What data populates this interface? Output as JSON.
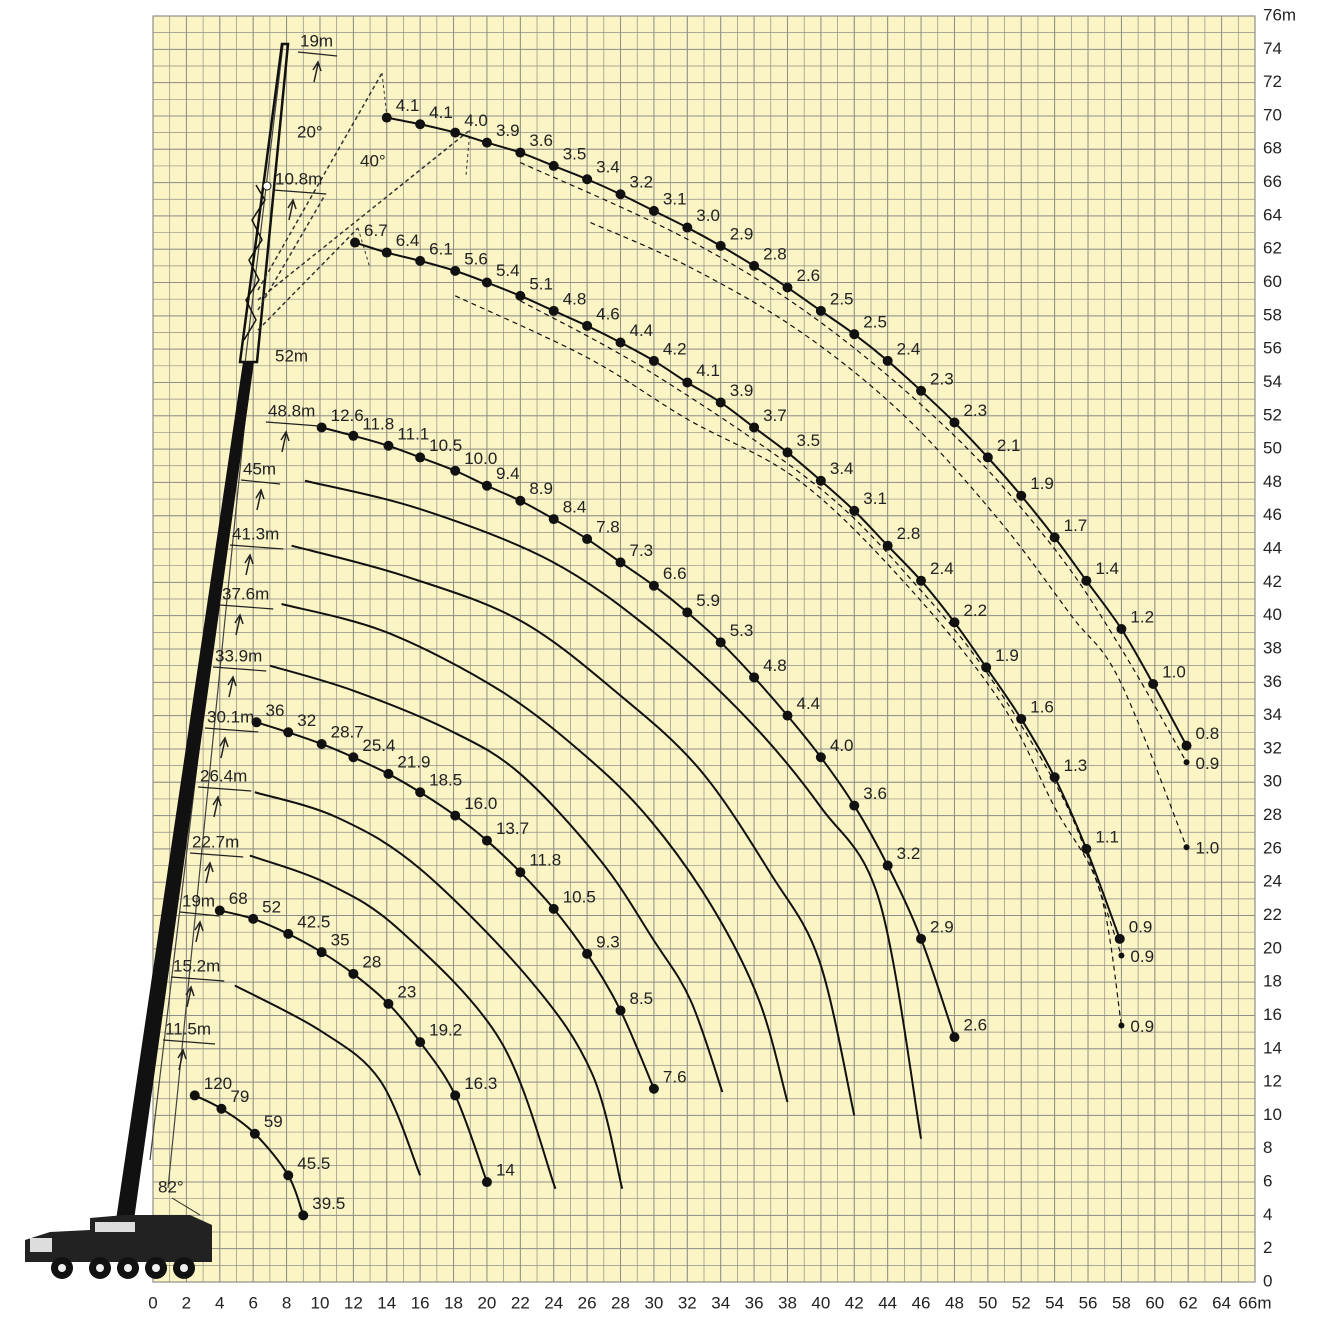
{
  "chart_data": {
    "type": "load-chart",
    "xlim": [
      0,
      66
    ],
    "ylim": [
      0,
      76
    ],
    "xticks": [
      0,
      2,
      4,
      6,
      8,
      10,
      12,
      14,
      16,
      18,
      20,
      22,
      24,
      26,
      28,
      30,
      32,
      34,
      36,
      38,
      40,
      42,
      44,
      46,
      48,
      50,
      52,
      54,
      56,
      58,
      60,
      62,
      64,
      {
        "value": 66,
        "label": "66m"
      }
    ],
    "yticks": [
      0,
      2,
      4,
      6,
      8,
      10,
      12,
      14,
      16,
      18,
      20,
      22,
      24,
      26,
      28,
      30,
      32,
      34,
      36,
      38,
      40,
      42,
      44,
      46,
      48,
      50,
      52,
      54,
      56,
      58,
      60,
      62,
      64,
      66,
      68,
      70,
      72,
      74,
      {
        "value": 76,
        "label": "76m"
      }
    ],
    "grid": true,
    "minor_grid_step": 1,
    "background": "#fbf4c4",
    "grid_color": "#8f8f86",
    "color": "#111111",
    "annotations": [
      "52m",
      "20°",
      "40°",
      "82°"
    ],
    "series": [
      {
        "name": "11.5m",
        "style": "solid",
        "x": [
          2.5,
          4.1,
          6.1,
          8.1,
          9.0
        ],
        "values": [
          11.2,
          10.4,
          8.9,
          6.4,
          4.0
        ],
        "load_labels": [
          "120",
          "79",
          "59",
          "45.5",
          "39.5"
        ]
      },
      {
        "name": "15.2m",
        "style": "solid",
        "x": [
          4.9,
          10,
          13.6,
          16
        ],
        "values": [
          17.8,
          15.1,
          12.1,
          6.4
        ]
      },
      {
        "name": "19m",
        "style": "solid",
        "x": [
          4.0,
          6.0,
          8.1,
          10.1,
          12.0,
          14.1,
          16.0,
          18.1,
          20.0
        ],
        "values": [
          22.3,
          21.8,
          20.9,
          19.8,
          18.5,
          16.7,
          14.4,
          11.2,
          6.0
        ],
        "load_labels": [
          "68",
          "52",
          "42.5",
          "35",
          "28",
          "23",
          "19.2",
          "16.3",
          "14"
        ]
      },
      {
        "name": "22.7m",
        "style": "solid",
        "x": [
          5.8,
          10.5,
          14.8,
          20.8,
          24.1
        ],
        "values": [
          25.6,
          23.9,
          21.1,
          14.5,
          5.6
        ]
      },
      {
        "name": "26.4m",
        "style": "solid",
        "x": [
          6.1,
          11,
          16,
          22.6,
          26.3,
          28.1
        ],
        "values": [
          29.4,
          27.9,
          24.8,
          18.1,
          12.5,
          5.6
        ]
      },
      {
        "name": "30.1m",
        "style": "solid",
        "x": [
          6.2,
          8.1,
          10.1,
          12.0,
          14.1,
          16.0,
          18.1,
          20.0,
          22.0,
          24.0,
          26.0,
          28.0,
          30.0
        ],
        "values": [
          33.6,
          33.0,
          32.3,
          31.5,
          30.5,
          29.4,
          28.0,
          26.5,
          24.6,
          22.4,
          19.7,
          16.3,
          11.6
        ],
        "load_labels": [
          "36",
          "32",
          "28.7",
          "25.4",
          "21.9",
          "18.5",
          "16.0",
          "13.7",
          "11.8",
          "10.5",
          "9.3",
          "8.5",
          "7.6"
        ]
      },
      {
        "name": "33.9m",
        "style": "solid",
        "x": [
          7,
          12,
          17.8,
          22,
          26.8,
          30,
          32.2,
          34.1
        ],
        "values": [
          37,
          35.5,
          33.1,
          30.5,
          25.3,
          20.5,
          16.9,
          11.4
        ]
      },
      {
        "name": "37.6m",
        "style": "solid",
        "x": [
          7.7,
          14,
          20.8,
          26,
          29.8,
          33.5,
          36.3,
          38
        ],
        "values": [
          40.7,
          39,
          35.5,
          31.5,
          27.7,
          22.5,
          16.9,
          10.8
        ]
      },
      {
        "name": "41.3m",
        "style": "solid",
        "x": [
          8.3,
          15,
          22,
          28,
          32.8,
          37,
          39.9,
          42
        ],
        "values": [
          44.2,
          42.4,
          39.7,
          35.2,
          30.7,
          24.5,
          19.3,
          10
        ]
      },
      {
        "name": "45m",
        "style": "solid",
        "x": [
          9.1,
          16,
          23.8,
          30,
          35.7,
          40,
          43.5,
          46
        ],
        "values": [
          48.1,
          46.4,
          43.3,
          39,
          33.7,
          28.5,
          22.9,
          8.6
        ]
      },
      {
        "name": "48.8m",
        "style": "solid",
        "x": [
          10.1,
          12.0,
          14.1,
          16.0,
          18.1,
          20.0,
          22.0,
          24.0,
          26.0,
          28.0,
          30.0,
          32.0,
          34.0,
          36.0,
          38.0,
          40.0,
          42.0,
          44.0,
          46.0,
          48.0
        ],
        "values": [
          51.3,
          50.8,
          50.2,
          49.5,
          48.7,
          47.8,
          46.9,
          45.8,
          44.6,
          43.2,
          41.8,
          40.2,
          38.4,
          36.3,
          34.0,
          31.5,
          28.6,
          25.0,
          20.6,
          14.7
        ],
        "load_labels": [
          "12.6",
          "11.8",
          "11.1",
          "10.5",
          "10.0",
          "9.4",
          "8.9",
          "8.4",
          "7.8",
          "7.3",
          "6.6",
          "5.9",
          "5.3",
          "4.8",
          "4.4",
          "4.0",
          "3.6",
          "3.2",
          "2.9",
          "2.6"
        ]
      },
      {
        "name": "19m",
        "style": "solid",
        "x": [
          14.0,
          16.0,
          18.1,
          20.0,
          22.0,
          24.0,
          26.0,
          28.0,
          30.0,
          32.0,
          34.0,
          36.0,
          38.0,
          40.0,
          42.0,
          44.0,
          46.0,
          48.0,
          50.0,
          52.0,
          54.0,
          55.9,
          58.0,
          59.9,
          61.9
        ],
        "values": [
          69.9,
          69.5,
          69.0,
          68.4,
          67.8,
          67.0,
          66.2,
          65.3,
          64.3,
          63.3,
          62.2,
          61.0,
          59.7,
          58.3,
          56.9,
          55.3,
          53.5,
          51.6,
          49.5,
          47.2,
          44.7,
          42.1,
          39.2,
          35.9,
          32.2
        ],
        "load_labels": [
          "4.1",
          "4.1",
          "4.0",
          "3.9",
          "3.6",
          "3.5",
          "3.4",
          "3.2",
          "3.1",
          "3.0",
          "2.9",
          "2.8",
          "2.6",
          "2.5",
          "2.5",
          "2.4",
          "2.3",
          "2.3",
          "2.1",
          "1.9",
          "1.7",
          "1.4",
          "1.2",
          "1.0",
          "0.8"
        ]
      },
      {
        "name": "10.8m",
        "style": "solid",
        "x": [
          12.1,
          14.0,
          16.0,
          18.1,
          20.0,
          22.0,
          24.0,
          26.0,
          28.0,
          30.0,
          32.0,
          34.0,
          36.0,
          38.0,
          40.0,
          42.0,
          44.0,
          46.0,
          48.0,
          49.9,
          52.0,
          54.0,
          55.9,
          57.9
        ],
        "values": [
          62.4,
          61.8,
          61.3,
          60.7,
          60.0,
          59.2,
          58.3,
          57.4,
          56.4,
          55.3,
          54.0,
          52.8,
          51.3,
          49.8,
          48.1,
          46.3,
          44.2,
          42.1,
          39.6,
          36.9,
          33.8,
          30.3,
          26.0,
          20.6
        ],
        "load_labels": [
          "6.7",
          "6.4",
          "6.1",
          "5.6",
          "5.4",
          "5.1",
          "4.8",
          "4.6",
          "4.4",
          "4.2",
          "4.1",
          "3.9",
          "3.7",
          "3.5",
          "3.4",
          "3.1",
          "2.8",
          "2.4",
          "2.2",
          "1.9",
          "1.6",
          "1.3",
          "1.1",
          "0.9"
        ]
      },
      {
        "style": "dashed",
        "x": [
          22,
          32,
          40,
          48,
          54,
          58,
          61.9
        ],
        "values": [
          67.2,
          62.6,
          57.6,
          50.8,
          44,
          38,
          31.2
        ],
        "load_labels": [
          null,
          null,
          null,
          null,
          null,
          null,
          "0.9"
        ]
      },
      {
        "style": "dashed",
        "x": [
          26.2,
          32,
          38.7,
          45,
          50.7,
          55,
          57.9,
          61.9
        ],
        "values": [
          63.6,
          61,
          57.1,
          52,
          45.7,
          40,
          36.1,
          26.1
        ],
        "load_labels": [
          null,
          null,
          null,
          null,
          null,
          null,
          null,
          "1.0"
        ]
      },
      {
        "style": "dashed",
        "x": [
          22,
          30,
          40,
          46,
          50,
          54,
          56,
          58
        ],
        "values": [
          58.9,
          54.5,
          47.6,
          41.5,
          36.5,
          30,
          25.5,
          19.6
        ],
        "load_labels": [
          null,
          null,
          null,
          null,
          null,
          null,
          null,
          "0.9"
        ]
      },
      {
        "style": "dashed",
        "x": [
          18.1,
          26,
          32,
          38.7,
          45,
          50.7,
          54,
          56.7,
          58
        ],
        "values": [
          59.2,
          55.5,
          51.8,
          48.1,
          42,
          34.9,
          28.5,
          23.5,
          15.4
        ],
        "load_labels": [
          null,
          null,
          null,
          null,
          null,
          null,
          null,
          null,
          "0.9"
        ]
      }
    ]
  }
}
